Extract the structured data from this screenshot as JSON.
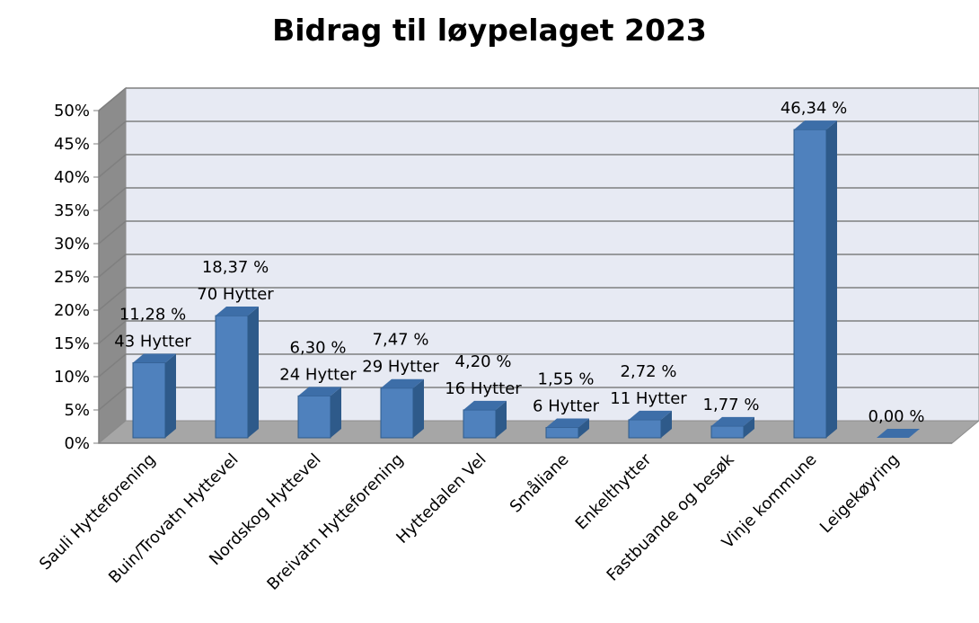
{
  "chart_data": {
    "type": "bar",
    "title": "Bidrag til løypelaget 2023",
    "xlabel": "",
    "ylabel": "",
    "ylim": [
      0,
      50
    ],
    "yticks": [
      "0%",
      "5%",
      "10%",
      "15%",
      "20%",
      "25%",
      "30%",
      "35%",
      "40%",
      "45%",
      "50%"
    ],
    "grid": true,
    "style": "3d",
    "colors": {
      "bar": "#4F81BD",
      "bar_side": "#2E5A8A",
      "bar_top": "#3D6EA8",
      "wall": "#E7EAF3",
      "floor": "#A6A6A6"
    },
    "categories": [
      "Sauli Hytteforening",
      "Buin/Trovatn Hyttevel",
      "Nordskog Hyttevel",
      "Breivatn Hytteforening",
      "Hyttedalen Vel",
      "Småliane",
      "Enkelthytter",
      "Fastbuande og besøk",
      "Vinje kommune",
      "Leigekøyring"
    ],
    "values": [
      11.28,
      18.37,
      6.3,
      7.47,
      4.2,
      1.55,
      2.72,
      1.77,
      46.34,
      0.0
    ],
    "data_labels": [
      [
        "11,28 %",
        "43 Hytter"
      ],
      [
        "18,37 %",
        "70 Hytter"
      ],
      [
        "6,30 %",
        "24 Hytter"
      ],
      [
        "7,47 %",
        "29 Hytter"
      ],
      [
        "4,20 %",
        "16 Hytter"
      ],
      [
        "1,55 %",
        "6 Hytter"
      ],
      [
        "2,72 %",
        "11 Hytter"
      ],
      [
        "1,77 %"
      ],
      [
        "46,34 %"
      ],
      [
        "0,00 %"
      ]
    ]
  }
}
